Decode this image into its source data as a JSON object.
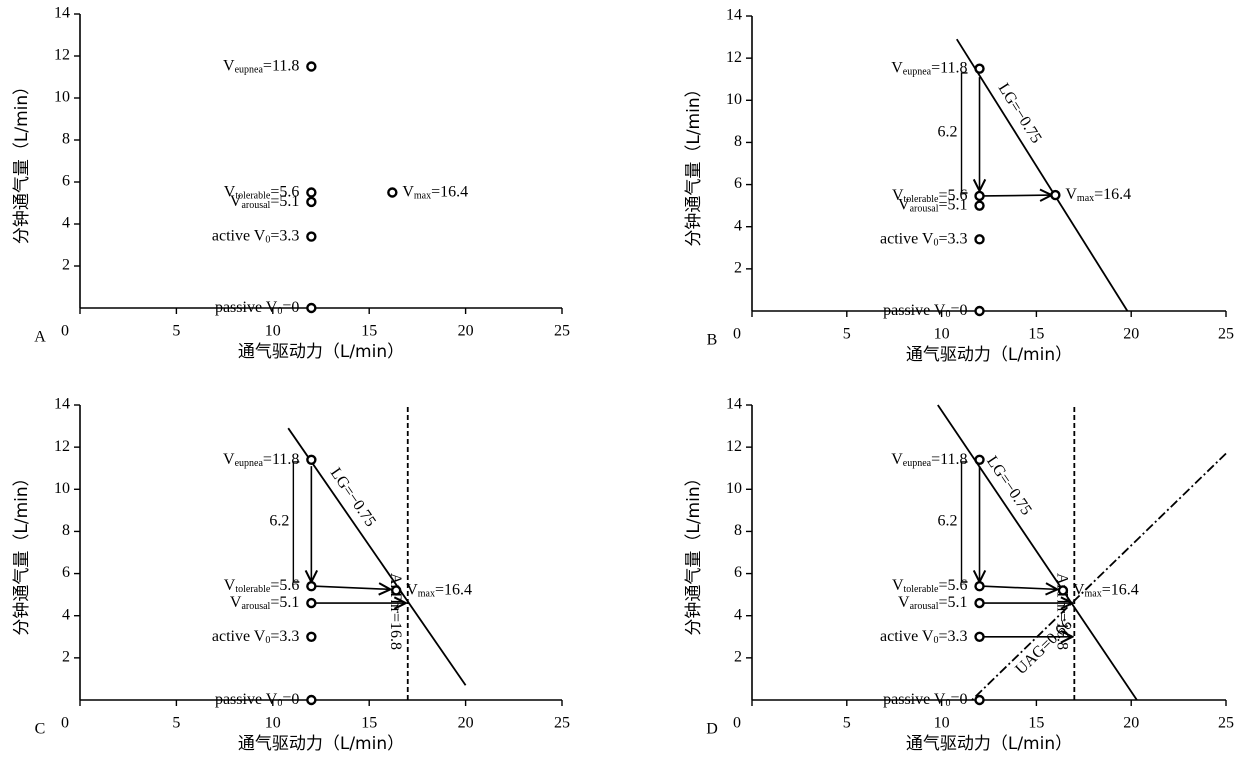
{
  "chart_data": [
    {
      "type": "scatter",
      "panel_label": "A",
      "x_label": "通气驱动力（L/min）",
      "y_label": "分钟通气量（L/min）",
      "xlim": [
        0,
        25
      ],
      "ylim": [
        0,
        14
      ],
      "xticks": [
        0,
        5,
        10,
        15,
        20,
        25
      ],
      "yticks": [
        2,
        4,
        6,
        8,
        10,
        12,
        14
      ],
      "color": "#000000",
      "x": [
        12,
        12,
        12,
        12,
        12,
        16.2
      ],
      "y": [
        11.5,
        5.5,
        5.05,
        3.4,
        0,
        5.5
      ],
      "point_labels": [
        [
          "V",
          "eupnea",
          "=11.8"
        ],
        [
          "V",
          "tolerable",
          "=5.6"
        ],
        [
          "V",
          "arousal",
          "=5.1"
        ],
        [
          "active V",
          "0",
          "=3.3"
        ],
        [
          "passive V",
          "0",
          "=0"
        ],
        [
          "V",
          "max",
          "=16.4"
        ]
      ]
    },
    {
      "type": "scatter",
      "panel_label": "B",
      "x_label": "通气驱动力（L/min）",
      "y_label": "分钟通气量（L/min）",
      "xlim": [
        0,
        25
      ],
      "ylim": [
        0,
        14
      ],
      "xticks": [
        0,
        5,
        10,
        15,
        20,
        25
      ],
      "yticks": [
        2,
        4,
        6,
        8,
        10,
        12,
        14
      ],
      "color": "#000000",
      "x": [
        12,
        12,
        12,
        12,
        12,
        16
      ],
      "y": [
        11.5,
        5.46,
        5.0,
        3.4,
        0,
        5.5
      ],
      "point_labels": [
        [
          "V",
          "eupnea",
          "=11.8"
        ],
        [
          "V",
          "tolerable",
          "=5.6"
        ],
        [
          "V",
          "arousal",
          "=5.1"
        ],
        [
          "active V",
          "0",
          "=3.3"
        ],
        [
          "passive V",
          "0",
          "=0"
        ],
        [
          "V",
          "max",
          "=16.4"
        ]
      ],
      "lines": [
        {
          "label": "LG=−0.75",
          "x": [
            10.8,
            19.8
          ],
          "y": [
            12.9,
            0
          ],
          "style": "solid"
        }
      ],
      "arrows": [
        {
          "x": [
            12,
            12
          ],
          "y": [
            11.1,
            5.7
          ]
        },
        {
          "x": [
            12.2,
            15.8
          ],
          "y": [
            5.46,
            5.5
          ]
        }
      ],
      "bracket": {
        "label": "6.2",
        "y": [
          11.3,
          5.6
        ]
      }
    },
    {
      "type": "scatter",
      "panel_label": "C",
      "x_label": "通气驱动力（L/min）",
      "y_label": "分钟通气量（L/min）",
      "xlim": [
        0,
        25
      ],
      "ylim": [
        0,
        14
      ],
      "xticks": [
        0,
        5,
        10,
        15,
        20,
        25
      ],
      "yticks": [
        2,
        4,
        6,
        8,
        10,
        12,
        14
      ],
      "color": "#000000",
      "x": [
        12,
        12,
        12,
        12,
        12,
        16.4
      ],
      "y": [
        11.4,
        5.4,
        4.6,
        3.0,
        0,
        5.2
      ],
      "point_labels": [
        [
          "V",
          "eupnea",
          "=11.8"
        ],
        [
          "V",
          "tolerable",
          "=5.6"
        ],
        [
          "V",
          "arousal",
          "=5.1"
        ],
        [
          "active V",
          "0",
          "=3.3"
        ],
        [
          "passive V",
          "0",
          "=0"
        ],
        [
          "V",
          "max",
          "=16.4"
        ]
      ],
      "lines": [
        {
          "label": "LG=−0.75",
          "x": [
            10.8,
            20
          ],
          "y": [
            12.9,
            0.7
          ],
          "style": "solid"
        },
        {
          "label": "ArThr=16.8",
          "x": [
            17,
            17
          ],
          "y": [
            0,
            14
          ],
          "style": "dashed"
        }
      ],
      "arrows": [
        {
          "x": [
            12,
            12
          ],
          "y": [
            11.1,
            5.6
          ]
        },
        {
          "x": [
            12.2,
            16.1
          ],
          "y": [
            5.4,
            5.25
          ]
        },
        {
          "x": [
            12.2,
            16.9
          ],
          "y": [
            4.6,
            4.6
          ]
        }
      ],
      "bracket": {
        "label": "6.2",
        "y": [
          11.3,
          5.6
        ]
      }
    },
    {
      "type": "scatter",
      "panel_label": "D",
      "x_label": "通气驱动力（L/min）",
      "y_label": "分钟通气量（L/min）",
      "xlim": [
        0,
        25
      ],
      "ylim": [
        0,
        14
      ],
      "xticks": [
        0,
        5,
        10,
        15,
        20,
        25
      ],
      "yticks": [
        2,
        4,
        6,
        8,
        10,
        12,
        14
      ],
      "color": "#000000",
      "x": [
        12,
        12,
        12,
        12,
        12,
        16.4
      ],
      "y": [
        11.4,
        5.4,
        4.6,
        3.0,
        0,
        5.2
      ],
      "point_labels": [
        [
          "V",
          "eupnea",
          "=11.8"
        ],
        [
          "V",
          "tolerable",
          "=5.6"
        ],
        [
          "V",
          "arousal",
          "=5.1"
        ],
        [
          "active V",
          "0",
          "=3.3"
        ],
        [
          "passive V",
          "0",
          "=0"
        ],
        [
          "V",
          "max",
          "=16.4"
        ]
      ],
      "lines": [
        {
          "label": "LG=−0.75",
          "x": [
            9.8,
            20.3
          ],
          "y": [
            14,
            0
          ],
          "style": "solid"
        },
        {
          "label": "ArThr=16.8",
          "x": [
            17,
            17
          ],
          "y": [
            0,
            14
          ],
          "style": "dashed"
        },
        {
          "label": "UAG=0.66",
          "x": [
            25,
            11.6
          ],
          "y": [
            11.7,
            0
          ],
          "style": "dashdot"
        }
      ],
      "arrows": [
        {
          "x": [
            12,
            12
          ],
          "y": [
            11.1,
            5.6
          ]
        },
        {
          "x": [
            12.2,
            16.1
          ],
          "y": [
            5.4,
            5.25
          ]
        },
        {
          "x": [
            12.2,
            16.9
          ],
          "y": [
            4.6,
            4.6
          ]
        },
        {
          "x": [
            12.2,
            16.9
          ],
          "y": [
            3.0,
            3.0
          ]
        }
      ],
      "bracket": {
        "label": "6.2",
        "y": [
          11.3,
          5.6
        ]
      }
    }
  ]
}
